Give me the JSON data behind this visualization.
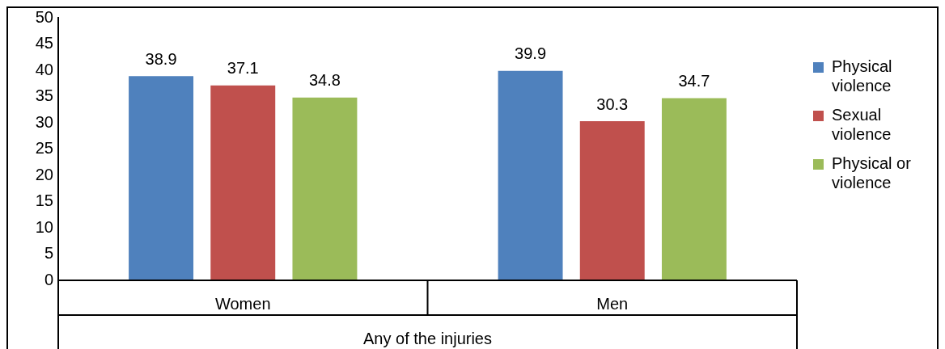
{
  "chart_data": {
    "type": "bar",
    "categories": [
      "Women",
      "Men"
    ],
    "xlabel": "Any of the injuries",
    "series": [
      {
        "name": "Physical violence",
        "color": "#4f81bd",
        "values": [
          38.9,
          39.9
        ]
      },
      {
        "name": "Sexual violence",
        "color": "#c0504d",
        "values": [
          37.1,
          30.3
        ]
      },
      {
        "name": "Physical or violence",
        "color": "#9bbb59",
        "values": [
          34.8,
          34.7
        ]
      }
    ],
    "ylim": [
      0,
      50
    ],
    "yticks": [
      0,
      5,
      10,
      15,
      20,
      25,
      30,
      35,
      40,
      45,
      50
    ],
    "grid": false,
    "legend": "right",
    "data_labels": true
  }
}
